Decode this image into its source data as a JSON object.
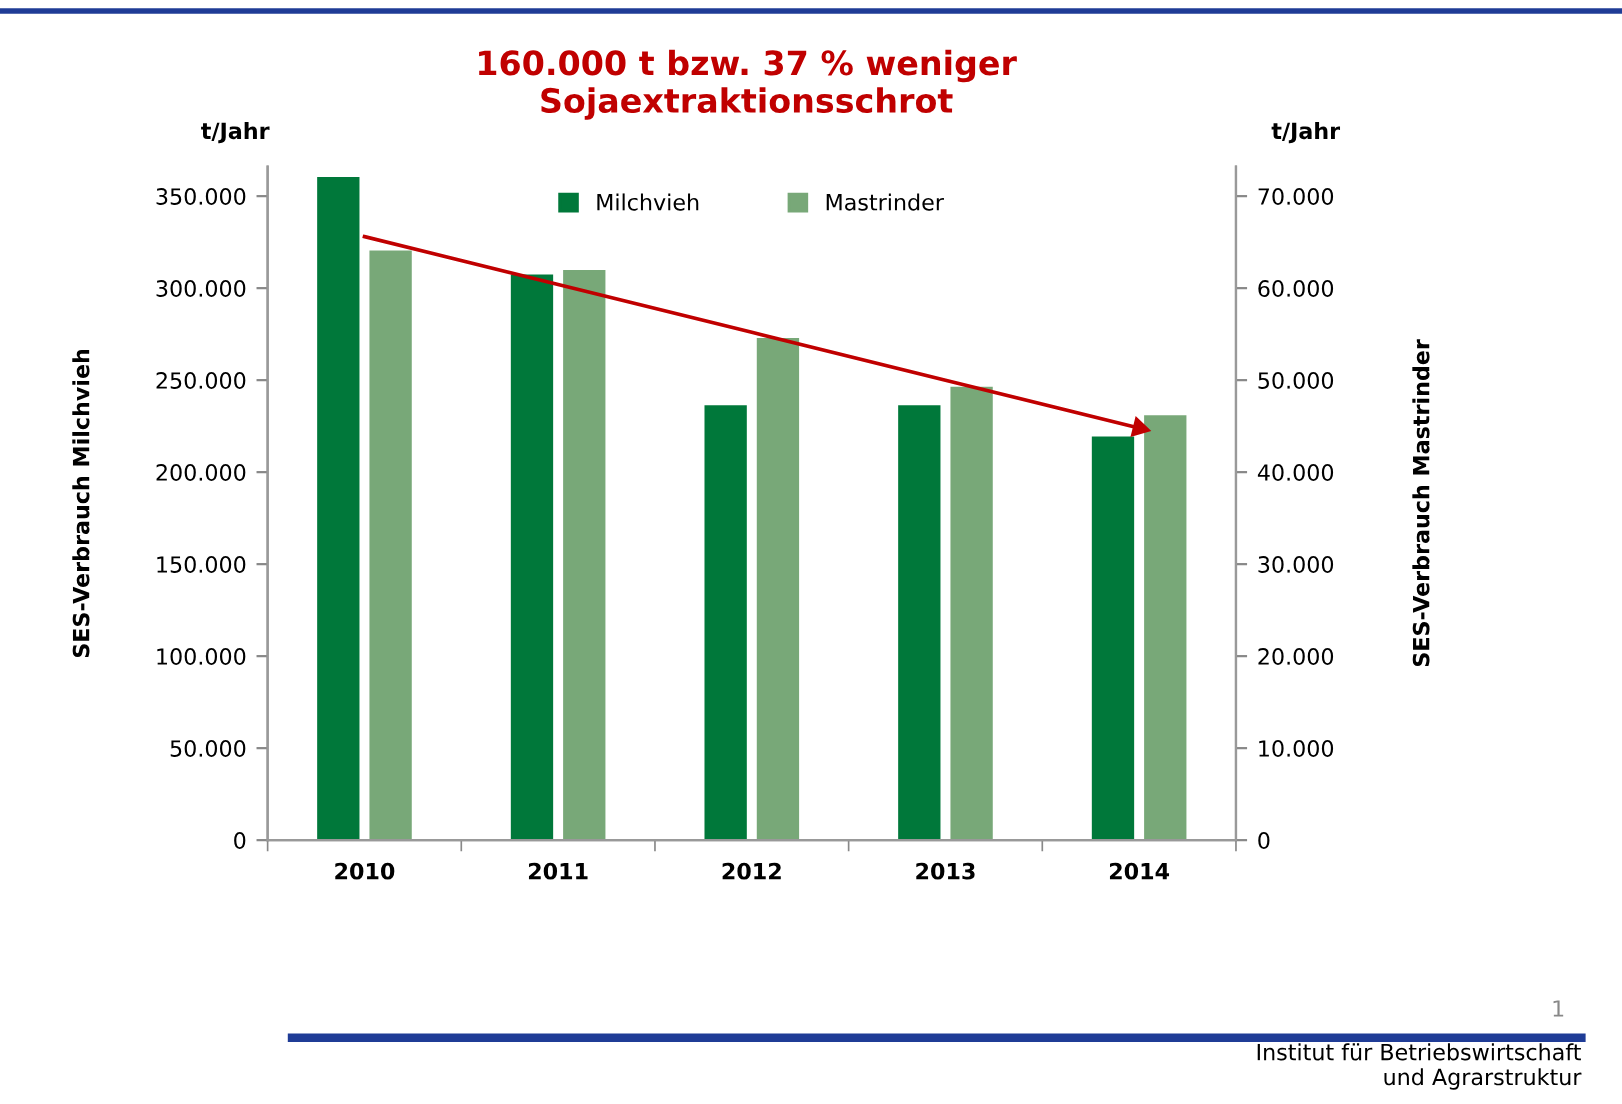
{
  "chart_data": {
    "type": "bar",
    "title": "160.000 t bzw. 37 % weniger\nSojaextraktionsschrot",
    "ylabel": "SES-Verbrauch Milchvieh",
    "y2label": "SES-Verbrauch Mastrinder",
    "categories": [
      "2010",
      "2011",
      "2012",
      "2013",
      "2014"
    ],
    "series": [
      {
        "name": "Milchvieh",
        "color": "#00783a",
        "values": [
          361000,
          308000,
          237000,
          237000,
          220000
        ]
      },
      {
        "name": "Mastrinder",
        "color": "#78a878",
        "axis": "y2",
        "values": [
          64200,
          62100,
          54700,
          49400,
          46300
        ]
      },
      {
        "type": "line",
        "color": "#c00000",
        "values": [
          328000,
          302000,
          276000,
          250000,
          224000
        ]
      }
    ],
    "ylim": [
      0,
      366000
    ],
    "yticks": [
      {
        "value": 0,
        "label": "0"
      },
      {
        "value": 50000,
        "label": "50.000"
      },
      {
        "value": 100000,
        "label": "100.000"
      },
      {
        "value": 150000,
        "label": "150.000"
      },
      {
        "value": 200000,
        "label": "200.000"
      },
      {
        "value": 250000,
        "label": "250.000"
      },
      {
        "value": 300000,
        "label": "300.000"
      },
      {
        "value": 350000,
        "label": "350.000"
      }
    ],
    "y2lim": [
      0,
      73200
    ],
    "y2ticks": [
      {
        "value": 0,
        "label": "0"
      },
      {
        "value": 10000,
        "label": "10.000"
      },
      {
        "value": 20000,
        "label": "20.000"
      },
      {
        "value": 30000,
        "label": "30.000"
      },
      {
        "value": 40000,
        "label": "40.000"
      },
      {
        "value": 50000,
        "label": "50.000"
      },
      {
        "value": 60000,
        "label": "60.000"
      },
      {
        "value": 70000,
        "label": "70.000"
      }
    ],
    "legend": "top",
    "annotations": [
      "t/Jahr",
      "t/Jahr",
      "1",
      "Institut für Betriebswirtschaft\nund Agrarstruktur"
    ]
  }
}
